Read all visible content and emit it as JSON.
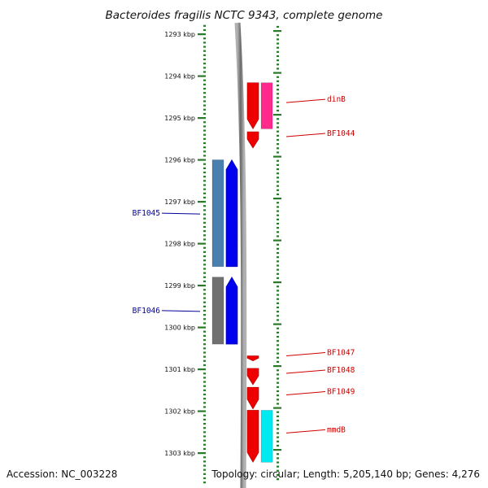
{
  "title": "Bacteroides fragilis NCTC 9343, complete genome",
  "footer": {
    "accession": "Accession: NC_003228",
    "topology": "Topology: circular; Length: 5,205,140 bp; Genes: 4,276"
  },
  "scale": {
    "unit": "kbp",
    "ticks": [
      {
        "kbp": 1293,
        "label": "1293 kbp"
      },
      {
        "kbp": 1294,
        "label": "1294 kbp"
      },
      {
        "kbp": 1295,
        "label": "1295 kbp"
      },
      {
        "kbp": 1296,
        "label": "1296 kbp"
      },
      {
        "kbp": 1297,
        "label": "1297 kbp"
      },
      {
        "kbp": 1298,
        "label": "1298 kbp"
      },
      {
        "kbp": 1299,
        "label": "1299 kbp"
      },
      {
        "kbp": 1300,
        "label": "1300 kbp"
      },
      {
        "kbp": 1301,
        "label": "1301 kbp"
      },
      {
        "kbp": 1302,
        "label": "1302 kbp"
      },
      {
        "kbp": 1303,
        "label": "1303 kbp"
      }
    ]
  },
  "colors": {
    "tick": "#2a7a2a",
    "backbone": "#8a8a8a",
    "forward_label": "#000099",
    "reverse_label": "#cc0000",
    "cds_forward": "#0000ee",
    "cds_reverse": "#ee0000",
    "gene_forward": "#4a80b0",
    "gene_pseudo": "#707070",
    "gene_reverse": "#ff2a8c",
    "gene_reverse_alt": "#00e8f0"
  },
  "features": [
    {
      "name": "dinB",
      "strand": "-",
      "start_kbp": 1294.16,
      "end_kbp": 1295.26,
      "gene_color": "gene_reverse",
      "label": "dinB"
    },
    {
      "name": "BF1044",
      "strand": "-",
      "start_kbp": 1295.33,
      "end_kbp": 1295.72,
      "label": "BF1044"
    },
    {
      "name": "BF1045",
      "strand": "+",
      "start_kbp": 1296.0,
      "end_kbp": 1298.55,
      "gene_color": "gene_forward",
      "label": "BF1045"
    },
    {
      "name": "BF1046",
      "strand": "+",
      "start_kbp": 1298.8,
      "end_kbp": 1300.4,
      "gene_color": "gene_pseudo",
      "label": "BF1046"
    },
    {
      "name": "BF1047",
      "strand": "-",
      "start_kbp": 1300.68,
      "end_kbp": 1300.8,
      "label": "BF1047"
    },
    {
      "name": "BF1048",
      "strand": "-",
      "start_kbp": 1300.98,
      "end_kbp": 1301.37,
      "label": "BF1048"
    },
    {
      "name": "BF1049",
      "strand": "-",
      "start_kbp": 1301.43,
      "end_kbp": 1301.95,
      "label": "BF1049"
    },
    {
      "name": "mmdB",
      "strand": "-",
      "start_kbp": 1301.98,
      "end_kbp": 1303.22,
      "gene_color": "gene_reverse_alt",
      "label": "mmdB"
    }
  ]
}
